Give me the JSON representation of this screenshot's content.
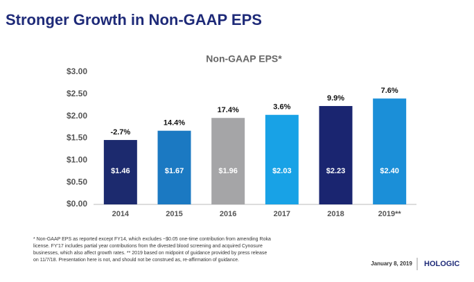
{
  "title": "Stronger Growth in Non-GAAP EPS",
  "chart_data": {
    "type": "bar",
    "title": "Non-GAAP EPS*",
    "categories": [
      "2014",
      "2015",
      "2016",
      "2017",
      "2018",
      "2019**"
    ],
    "values": [
      1.46,
      1.67,
      1.96,
      2.03,
      2.23,
      2.4
    ],
    "value_labels": [
      "$1.46",
      "$1.67",
      "$1.96",
      "$2.03",
      "$2.23",
      "$2.40"
    ],
    "annotations": [
      "-2.7%",
      "14.4%",
      "17.4%",
      "3.6%",
      "9.9%",
      "7.6%"
    ],
    "colors": [
      "#1c2a6e",
      "#1b79c2",
      "#a5a5a7",
      "#18a2e6",
      "#1a2570",
      "#1b8fd8"
    ],
    "ylim": [
      0,
      3
    ],
    "yticks": [
      {
        "value": 0,
        "label": "$0.00"
      },
      {
        "value": 0.5,
        "label": "$0.50"
      },
      {
        "value": 1,
        "label": "$1.00"
      },
      {
        "value": 1.5,
        "label": "$1.50"
      },
      {
        "value": 2,
        "label": "$2.00"
      },
      {
        "value": 2.5,
        "label": "$2.50"
      },
      {
        "value": 3,
        "label": "$3.00"
      }
    ],
    "grid": false
  },
  "footnote": [
    "* Non-GAAP EPS as reported except FY14, which excludes ~$0.05 one-time contribution from amending Roka",
    "license. FY'17 includes partial year contributions from the divested blood screening and acquired Cynosure",
    "businesses, which also affect growth rates. ** 2019 based on midpoint of guidance provided by press release",
    "on 11/7/18.  Presentation here is not, and should not be construed as, re-affirmation of guidance."
  ],
  "date": "January 8, 2019",
  "logo": "HOLOGIC"
}
